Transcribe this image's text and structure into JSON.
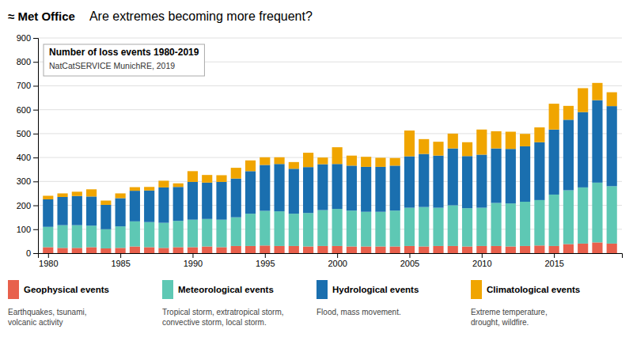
{
  "chart_data": {
    "type": "bar",
    "stacked": true,
    "title": "Are extremes becoming more frequent?",
    "annotations": [
      "≈ Met Office",
      "Number of loss events 1980-2019",
      "NatCatSERVICE MunichRE, 2019"
    ],
    "x": [
      1980,
      1981,
      1982,
      1983,
      1984,
      1985,
      1986,
      1987,
      1988,
      1989,
      1990,
      1991,
      1992,
      1993,
      1994,
      1995,
      1996,
      1997,
      1998,
      1999,
      2000,
      2001,
      2002,
      2003,
      2004,
      2005,
      2006,
      2007,
      2008,
      2009,
      2010,
      2011,
      2012,
      2013,
      2014,
      2015,
      2016,
      2017,
      2018,
      2019
    ],
    "series": [
      {
        "name": "Geophysical events",
        "description": "Earthquakes, tsunami,\nvolcanic activity",
        "color": "#e8604c",
        "values": [
          25,
          22,
          22,
          25,
          20,
          22,
          28,
          25,
          22,
          25,
          25,
          28,
          25,
          30,
          30,
          32,
          30,
          30,
          28,
          30,
          30,
          28,
          28,
          28,
          28,
          30,
          28,
          30,
          30,
          28,
          30,
          30,
          28,
          30,
          32,
          30,
          38,
          40,
          45,
          40
        ]
      },
      {
        "name": "Meteorological events",
        "description": "Tropical storm, extratropical storm,\nconvective storm, local storm.",
        "color": "#5ec8b4",
        "values": [
          85,
          95,
          95,
          90,
          80,
          90,
          105,
          105,
          105,
          110,
          115,
          115,
          115,
          120,
          135,
          145,
          145,
          135,
          140,
          150,
          155,
          150,
          145,
          145,
          150,
          160,
          165,
          160,
          170,
          160,
          160,
          180,
          180,
          185,
          190,
          215,
          225,
          235,
          250,
          240
        ]
      },
      {
        "name": "Hydrological events",
        "description": "Flood, mass movement.",
        "color": "#1a6faf",
        "values": [
          115,
          118,
          122,
          122,
          102,
          118,
          128,
          132,
          148,
          142,
          158,
          152,
          158,
          162,
          178,
          192,
          198,
          188,
          192,
          192,
          188,
          188,
          188,
          188,
          188,
          215,
          222,
          218,
          238,
          218,
          222,
          228,
          228,
          232,
          242,
          272,
          295,
          315,
          345,
          335
        ]
      },
      {
        "name": "Climatological events",
        "description": "Extreme temperature,\ndrought, wildfire.",
        "color": "#f0a500",
        "values": [
          15,
          15,
          18,
          30,
          18,
          20,
          15,
          15,
          28,
          15,
          45,
          32,
          28,
          45,
          45,
          32,
          28,
          28,
          60,
          28,
          70,
          42,
          42,
          38,
          32,
          108,
          62,
          58,
          62,
          58,
          105,
          72,
          72,
          52,
          62,
          108,
          58,
          100,
          72,
          58
        ]
      }
    ],
    "xlim": [
      1979.3,
      2019.7
    ],
    "xticks": [
      1980,
      1985,
      1990,
      1995,
      2000,
      2005,
      2010,
      2015
    ],
    "ylim": [
      0,
      900
    ],
    "yticks": [
      0,
      100,
      200,
      300,
      400,
      500,
      600,
      700,
      800,
      900
    ],
    "grid": true,
    "legend": "bottom"
  }
}
